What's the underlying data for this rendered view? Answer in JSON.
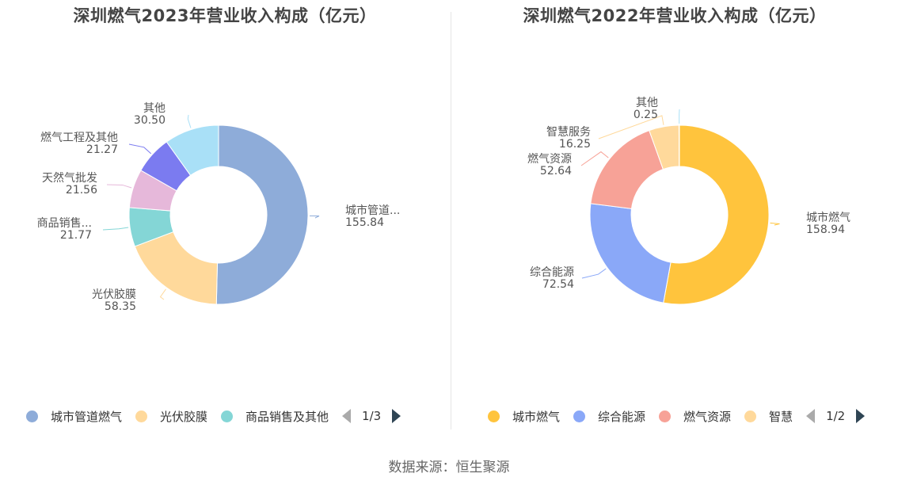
{
  "source": "数据来源：恒生聚源",
  "chart_data": [
    {
      "type": "pie",
      "title": "深圳燃气2023年营业收入构成（亿元）",
      "slices": [
        {
          "name": "城市管道燃气",
          "label": "城市管道...",
          "value": 155.84,
          "value_text": "155.84",
          "color": "#8eacd9"
        },
        {
          "name": "光伏胶膜",
          "label": "光伏胶膜",
          "value": 58.35,
          "value_text": "58.35",
          "color": "#ffd99b"
        },
        {
          "name": "商品销售及其他",
          "label": "商品销售...",
          "value": 21.77,
          "value_text": "21.77",
          "color": "#84d6d6"
        },
        {
          "name": "天然气批发",
          "label": "天然气批发",
          "value": 21.56,
          "value_text": "21.56",
          "color": "#e6b8da"
        },
        {
          "name": "燃气工程及其他",
          "label": "燃气工程及其他",
          "value": 21.27,
          "value_text": "21.27",
          "color": "#7b7bf0"
        },
        {
          "name": "其他",
          "label": "其他",
          "value": 30.5,
          "value_text": "30.50",
          "color": "#a9e0f7"
        }
      ],
      "legend": {
        "items": [
          "城市管道燃气",
          "光伏胶膜",
          "商品销售及其他"
        ],
        "page": "1/3"
      }
    },
    {
      "type": "pie",
      "title": "深圳燃气2022年营业收入构成（亿元）",
      "slices": [
        {
          "name": "城市燃气",
          "label": "城市燃气",
          "value": 158.94,
          "value_text": "158.94",
          "color": "#ffc43d"
        },
        {
          "name": "综合能源",
          "label": "综合能源",
          "value": 72.54,
          "value_text": "72.54",
          "color": "#8aa8f8"
        },
        {
          "name": "燃气资源",
          "label": "燃气资源",
          "value": 52.64,
          "value_text": "52.64",
          "color": "#f7a297"
        },
        {
          "name": "智慧服务",
          "label": "智慧服务",
          "value": 16.25,
          "value_text": "16.25",
          "color": "#ffd99b"
        },
        {
          "name": "其他",
          "label": "其他",
          "value": 0.25,
          "value_text": "0.25",
          "color": "#a9e0f7"
        }
      ],
      "legend": {
        "items": [
          "城市燃气",
          "综合能源",
          "燃气资源",
          "智慧"
        ],
        "page": "1/2"
      }
    }
  ]
}
